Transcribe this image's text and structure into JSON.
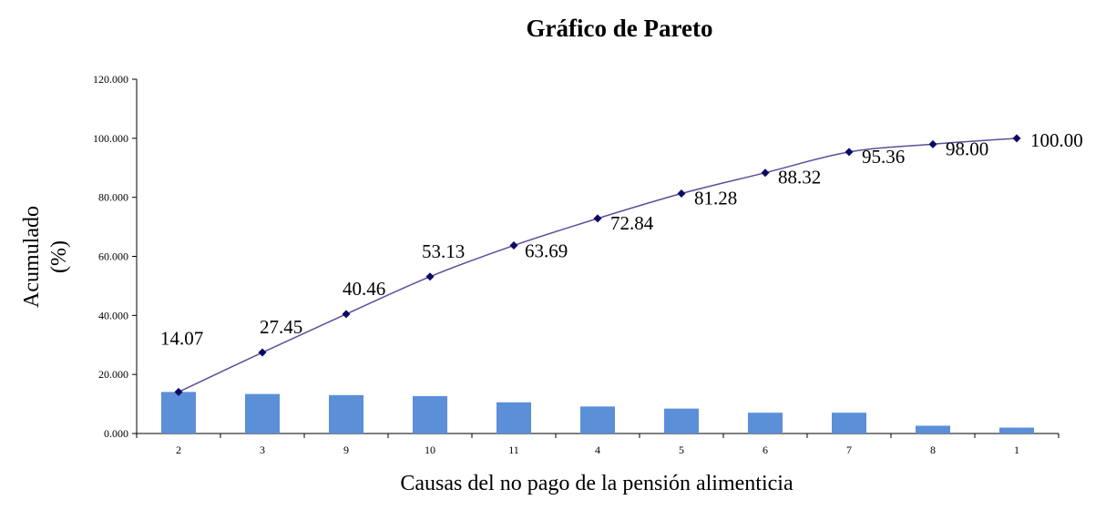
{
  "chart_data": {
    "type": "bar",
    "title": "Gráfico de Pareto",
    "xlabel": "Causas del no pago de la pensión alimenticia",
    "ylabel_line1": "Acumulado",
    "ylabel_line2": "(%)",
    "ylim": [
      0,
      120
    ],
    "yticks": [
      "0.000",
      "20.000",
      "40.000",
      "60.000",
      "80.000",
      "100.000",
      "120.000"
    ],
    "categories": [
      "2",
      "3",
      "9",
      "10",
      "11",
      "4",
      "5",
      "6",
      "7",
      "8",
      "1"
    ],
    "series": [
      {
        "type": "bar",
        "values": [
          14.07,
          13.38,
          13.01,
          12.67,
          10.56,
          9.15,
          8.44,
          7.04,
          7.04,
          2.64,
          2.0
        ],
        "color": "#5B8FD8"
      },
      {
        "type": "line",
        "values": [
          14.07,
          27.45,
          40.46,
          53.13,
          63.69,
          72.84,
          81.28,
          88.32,
          95.36,
          98.0,
          100.0
        ],
        "labels": [
          "14.07",
          "27.45",
          "40.46",
          "53.13",
          "63.69",
          "72.84",
          "81.28",
          "88.32",
          "95.36",
          "98.00",
          "100.00"
        ],
        "color": "#5A4E9C",
        "marker_color": "#0A0A66"
      }
    ],
    "grid": false,
    "legend": "none"
  }
}
